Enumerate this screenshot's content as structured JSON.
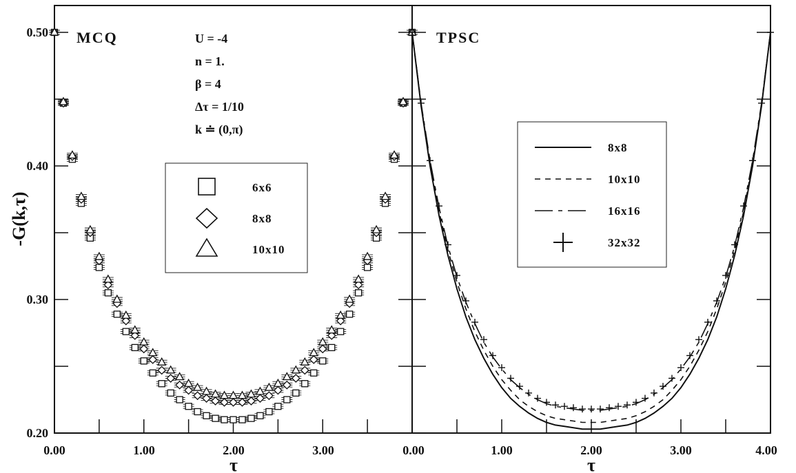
{
  "chart_data": [
    {
      "type": "scatter",
      "title": "MCQ",
      "xlabel": "τ",
      "ylabel": "-G(k,τ)",
      "xlim": [
        0,
        4
      ],
      "ylim": [
        0.2,
        0.5
      ],
      "x_tick_labels": [
        "0.00",
        "1.00",
        "2.00",
        "3.00"
      ],
      "y_tick_labels": [
        "0.20",
        "0.30",
        "0.40",
        "0.50"
      ],
      "parameters": [
        "U  = -4",
        "n  = 1.",
        "β  = 4",
        "Δτ = 1/10",
        "k ≐ (0,π)"
      ],
      "legend_position": "center",
      "x": [
        0.0,
        0.1,
        0.2,
        0.3,
        0.4,
        0.5,
        0.6,
        0.7,
        0.8,
        0.9,
        1.0,
        1.1,
        1.2,
        1.3,
        1.4,
        1.5,
        1.6,
        1.7,
        1.8,
        1.9,
        2.0,
        2.1,
        2.2,
        2.3,
        2.4,
        2.5,
        2.6,
        2.7,
        2.8,
        2.9,
        3.0,
        3.1,
        3.2,
        3.3,
        3.4,
        3.5,
        3.6,
        3.7,
        3.8,
        3.9,
        4.0
      ],
      "series": [
        {
          "name": "6x6",
          "marker": "square",
          "values": [
            0.5,
            0.447,
            0.405,
            0.372,
            0.346,
            0.324,
            0.305,
            0.289,
            0.276,
            0.264,
            0.254,
            0.245,
            0.237,
            0.23,
            0.225,
            0.22,
            0.216,
            0.213,
            0.211,
            0.21,
            0.21,
            0.21,
            0.211,
            0.213,
            0.216,
            0.22,
            0.225,
            0.23,
            0.237,
            0.245,
            0.254,
            0.264,
            0.276,
            0.289,
            0.305,
            0.324,
            0.346,
            0.372,
            0.405,
            0.447,
            0.5
          ]
        },
        {
          "name": "8x8",
          "marker": "diamond",
          "values": [
            0.5,
            0.447,
            0.407,
            0.375,
            0.35,
            0.329,
            0.311,
            0.297,
            0.284,
            0.273,
            0.263,
            0.255,
            0.247,
            0.241,
            0.236,
            0.232,
            0.228,
            0.226,
            0.224,
            0.223,
            0.223,
            0.223,
            0.224,
            0.226,
            0.228,
            0.232,
            0.236,
            0.241,
            0.247,
            0.255,
            0.263,
            0.273,
            0.284,
            0.297,
            0.311,
            0.329,
            0.35,
            0.375,
            0.407,
            0.447,
            0.5
          ]
        },
        {
          "name": "10x10",
          "marker": "triangle",
          "values": [
            0.5,
            0.448,
            0.408,
            0.377,
            0.352,
            0.332,
            0.315,
            0.3,
            0.288,
            0.277,
            0.268,
            0.26,
            0.253,
            0.247,
            0.242,
            0.237,
            0.234,
            0.231,
            0.229,
            0.228,
            0.228,
            0.228,
            0.229,
            0.231,
            0.234,
            0.237,
            0.242,
            0.247,
            0.253,
            0.26,
            0.268,
            0.277,
            0.288,
            0.3,
            0.315,
            0.332,
            0.352,
            0.377,
            0.408,
            0.448,
            0.5
          ]
        }
      ]
    },
    {
      "type": "line",
      "title": "TPSC",
      "xlabel": "τ",
      "xlim": [
        0,
        4
      ],
      "ylim": [
        0.2,
        0.5
      ],
      "x_tick_labels": [
        "0.00",
        "1.00",
        "2.00",
        "3.00",
        "4.00"
      ],
      "legend_position": "top-center",
      "x": [
        0.0,
        0.1,
        0.2,
        0.3,
        0.4,
        0.5,
        0.6,
        0.7,
        0.8,
        0.9,
        1.0,
        1.1,
        1.2,
        1.3,
        1.4,
        1.5,
        1.6,
        1.7,
        1.8,
        1.9,
        2.0,
        2.1,
        2.2,
        2.3,
        2.4,
        2.5,
        2.6,
        2.7,
        2.8,
        2.9,
        3.0,
        3.1,
        3.2,
        3.3,
        3.4,
        3.5,
        3.6,
        3.7,
        3.8,
        3.9,
        4.0
      ],
      "series": [
        {
          "name": "8x8",
          "style": "solid",
          "values": [
            0.5,
            0.445,
            0.4,
            0.363,
            0.333,
            0.308,
            0.287,
            0.27,
            0.256,
            0.244,
            0.234,
            0.226,
            0.22,
            0.215,
            0.211,
            0.208,
            0.206,
            0.205,
            0.204,
            0.203,
            0.203,
            0.203,
            0.204,
            0.205,
            0.206,
            0.208,
            0.211,
            0.215,
            0.22,
            0.226,
            0.234,
            0.244,
            0.256,
            0.27,
            0.287,
            0.308,
            0.333,
            0.363,
            0.4,
            0.445,
            0.5
          ]
        },
        {
          "name": "10x10",
          "style": "dashed",
          "values": [
            0.5,
            0.446,
            0.402,
            0.366,
            0.337,
            0.313,
            0.293,
            0.276,
            0.262,
            0.25,
            0.24,
            0.232,
            0.225,
            0.22,
            0.216,
            0.213,
            0.211,
            0.21,
            0.209,
            0.208,
            0.208,
            0.208,
            0.209,
            0.21,
            0.211,
            0.213,
            0.216,
            0.22,
            0.225,
            0.232,
            0.24,
            0.25,
            0.262,
            0.276,
            0.293,
            0.313,
            0.337,
            0.366,
            0.402,
            0.446,
            0.5
          ]
        },
        {
          "name": "16x16",
          "style": "dash-dot",
          "values": [
            0.5,
            0.447,
            0.404,
            0.369,
            0.34,
            0.317,
            0.298,
            0.282,
            0.268,
            0.257,
            0.248,
            0.24,
            0.234,
            0.229,
            0.225,
            0.222,
            0.22,
            0.219,
            0.218,
            0.217,
            0.217,
            0.217,
            0.218,
            0.219,
            0.22,
            0.222,
            0.225,
            0.229,
            0.234,
            0.24,
            0.248,
            0.257,
            0.268,
            0.282,
            0.298,
            0.317,
            0.34,
            0.369,
            0.404,
            0.447,
            0.5
          ]
        },
        {
          "name": "32x32",
          "marker": "plus",
          "values": [
            0.5,
            0.447,
            0.404,
            0.37,
            0.341,
            0.318,
            0.299,
            0.283,
            0.27,
            0.258,
            0.249,
            0.241,
            0.235,
            0.23,
            0.226,
            0.223,
            0.221,
            0.22,
            0.219,
            0.218,
            0.218,
            0.218,
            0.219,
            0.22,
            0.221,
            0.223,
            0.226,
            0.23,
            0.235,
            0.241,
            0.249,
            0.258,
            0.27,
            0.283,
            0.299,
            0.318,
            0.341,
            0.37,
            0.404,
            0.447,
            0.5
          ]
        }
      ]
    }
  ]
}
